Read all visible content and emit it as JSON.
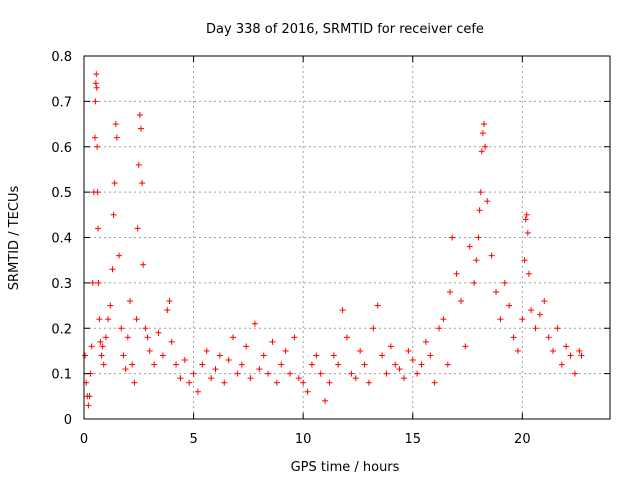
{
  "chart_data": {
    "type": "scatter",
    "title": "Day 338 of 2016, SRMTID for receiver cefe",
    "xlabel": "GPS time / hours",
    "ylabel": "SRMTID / TECUs",
    "xlim": [
      0,
      24
    ],
    "ylim": [
      0,
      0.8
    ],
    "xticks": [
      0,
      5,
      10,
      15,
      20
    ],
    "yticks": [
      0,
      0.1,
      0.2,
      0.3,
      0.4,
      0.5,
      0.6,
      0.7,
      0.8
    ],
    "xtick_labels": [
      "0",
      "5",
      "10",
      "15",
      "20"
    ],
    "ytick_labels": [
      "0",
      "0.1",
      "0.2",
      "0.3",
      "0.4",
      "0.5",
      "0.6",
      "0.7",
      "0.8"
    ],
    "grid": true,
    "marker": "plus",
    "color": "#ff0000",
    "series": [
      {
        "name": "SRMTID",
        "x": [
          0.05,
          0.1,
          0.15,
          0.2,
          0.25,
          0.3,
          0.35,
          0.4,
          0.45,
          0.5,
          0.52,
          0.54,
          0.56,
          0.58,
          0.6,
          0.62,
          0.64,
          0.66,
          0.7,
          0.75,
          0.8,
          0.85,
          0.9,
          1.0,
          1.1,
          1.2,
          1.3,
          1.35,
          1.4,
          1.45,
          1.5,
          1.6,
          1.7,
          1.8,
          1.9,
          2.0,
          2.1,
          2.2,
          2.3,
          2.4,
          2.45,
          2.5,
          2.55,
          2.6,
          2.65,
          2.7,
          2.8,
          2.9,
          3.0,
          3.2,
          3.4,
          3.6,
          3.8,
          3.9,
          4.0,
          4.2,
          4.4,
          4.6,
          4.8,
          5.0,
          5.2,
          5.4,
          5.6,
          5.8,
          6.0,
          6.2,
          6.4,
          6.6,
          6.8,
          7.0,
          7.2,
          7.4,
          7.6,
          7.8,
          8.0,
          8.2,
          8.4,
          8.6,
          8.8,
          9.0,
          9.2,
          9.4,
          9.6,
          9.8,
          10.0,
          10.2,
          10.4,
          10.6,
          10.8,
          11.0,
          11.2,
          11.4,
          11.6,
          11.8,
          12.0,
          12.2,
          12.4,
          12.6,
          12.8,
          13.0,
          13.2,
          13.4,
          13.6,
          13.8,
          14.0,
          14.2,
          14.4,
          14.6,
          14.8,
          15.0,
          15.2,
          15.4,
          15.6,
          15.8,
          16.0,
          16.2,
          16.4,
          16.6,
          16.7,
          16.8,
          17.0,
          17.2,
          17.4,
          17.6,
          17.8,
          17.9,
          18.0,
          18.05,
          18.1,
          18.15,
          18.2,
          18.25,
          18.3,
          18.4,
          18.6,
          18.8,
          19.0,
          19.2,
          19.4,
          19.6,
          19.8,
          20.0,
          20.1,
          20.15,
          20.2,
          20.25,
          20.3,
          20.4,
          20.6,
          20.8,
          21.0,
          21.2,
          21.4,
          21.6,
          21.8,
          22.0,
          22.2,
          22.4,
          22.6,
          22.7
        ],
        "y": [
          0.14,
          0.08,
          0.05,
          0.03,
          0.05,
          0.1,
          0.16,
          0.3,
          0.5,
          0.62,
          0.7,
          0.74,
          0.76,
          0.73,
          0.6,
          0.5,
          0.42,
          0.3,
          0.22,
          0.17,
          0.14,
          0.16,
          0.12,
          0.18,
          0.22,
          0.25,
          0.33,
          0.45,
          0.52,
          0.65,
          0.62,
          0.36,
          0.2,
          0.14,
          0.11,
          0.18,
          0.26,
          0.12,
          0.08,
          0.22,
          0.42,
          0.56,
          0.67,
          0.64,
          0.52,
          0.34,
          0.2,
          0.18,
          0.15,
          0.12,
          0.19,
          0.14,
          0.24,
          0.26,
          0.17,
          0.12,
          0.09,
          0.13,
          0.08,
          0.1,
          0.06,
          0.12,
          0.15,
          0.09,
          0.11,
          0.14,
          0.08,
          0.13,
          0.18,
          0.1,
          0.12,
          0.16,
          0.09,
          0.21,
          0.11,
          0.14,
          0.1,
          0.17,
          0.08,
          0.12,
          0.15,
          0.1,
          0.18,
          0.09,
          0.08,
          0.06,
          0.12,
          0.14,
          0.1,
          0.04,
          0.08,
          0.14,
          0.12,
          0.24,
          0.18,
          0.1,
          0.09,
          0.15,
          0.12,
          0.08,
          0.2,
          0.25,
          0.14,
          0.1,
          0.16,
          0.12,
          0.11,
          0.09,
          0.15,
          0.13,
          0.1,
          0.12,
          0.17,
          0.14,
          0.08,
          0.2,
          0.22,
          0.12,
          0.28,
          0.4,
          0.32,
          0.26,
          0.16,
          0.38,
          0.3,
          0.35,
          0.4,
          0.46,
          0.5,
          0.59,
          0.63,
          0.65,
          0.6,
          0.48,
          0.36,
          0.28,
          0.22,
          0.3,
          0.25,
          0.18,
          0.15,
          0.22,
          0.35,
          0.44,
          0.45,
          0.41,
          0.32,
          0.24,
          0.2,
          0.23,
          0.26,
          0.18,
          0.15,
          0.2,
          0.12,
          0.16,
          0.14,
          0.1,
          0.15,
          0.14
        ]
      }
    ]
  }
}
